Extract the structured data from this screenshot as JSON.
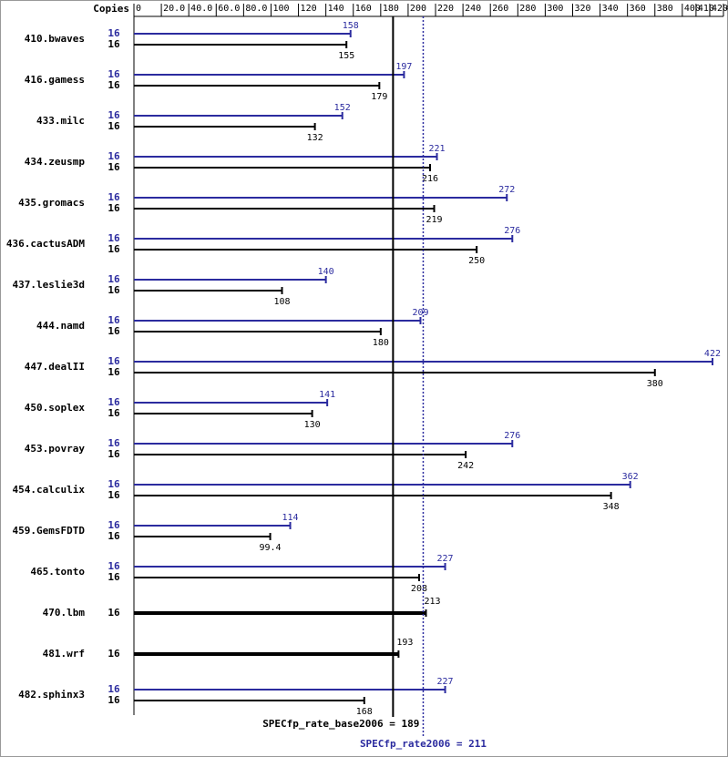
{
  "chart_data": {
    "type": "bar",
    "copies_header": "Copies",
    "categories": [
      "410.bwaves",
      "416.gamess",
      "433.milc",
      "434.zeusmp",
      "435.gromacs",
      "436.cactusADM",
      "437.leslie3d",
      "444.namd",
      "447.dealII",
      "450.soplex",
      "453.povray",
      "454.calculix",
      "459.GemsFDTD",
      "465.tonto",
      "470.lbm",
      "481.wrf",
      "482.sphinx3"
    ],
    "series": [
      {
        "color": "#2b2b9f",
        "copies": [
          16,
          16,
          16,
          16,
          16,
          16,
          16,
          16,
          16,
          16,
          16,
          16,
          16,
          16,
          null,
          null,
          16
        ],
        "values": [
          158,
          197,
          152,
          221,
          272,
          276,
          140,
          209,
          422,
          141,
          276,
          362,
          114,
          227,
          null,
          null,
          227
        ]
      },
      {
        "color": "#000000",
        "copies": [
          16,
          16,
          16,
          16,
          16,
          16,
          16,
          16,
          16,
          16,
          16,
          16,
          16,
          16,
          16,
          16,
          16
        ],
        "values": [
          155,
          179,
          132,
          216,
          219,
          250,
          108,
          180,
          380,
          130,
          242,
          348,
          99.4,
          208,
          213,
          193,
          168
        ]
      }
    ],
    "xlim": [
      0,
      430
    ],
    "xticks": [
      0,
      {
        "value": 20,
        "label": "20.0"
      },
      {
        "value": 40,
        "label": "40.0"
      },
      {
        "value": 60,
        "label": "60.0"
      },
      {
        "value": 80,
        "label": "80.0"
      },
      100,
      120,
      140,
      160,
      180,
      200,
      220,
      240,
      260,
      280,
      300,
      320,
      340,
      360,
      380,
      400,
      410,
      420,
      430
    ],
    "reference_lines": [
      {
        "label": "SPECfp_rate_base2006 = 189",
        "value": 189,
        "color": "#000000",
        "style": "solid"
      },
      {
        "label": "SPECfp_rate2006 = 211",
        "value": 211,
        "color": "#2b2b9f",
        "style": "dotted"
      }
    ]
  }
}
